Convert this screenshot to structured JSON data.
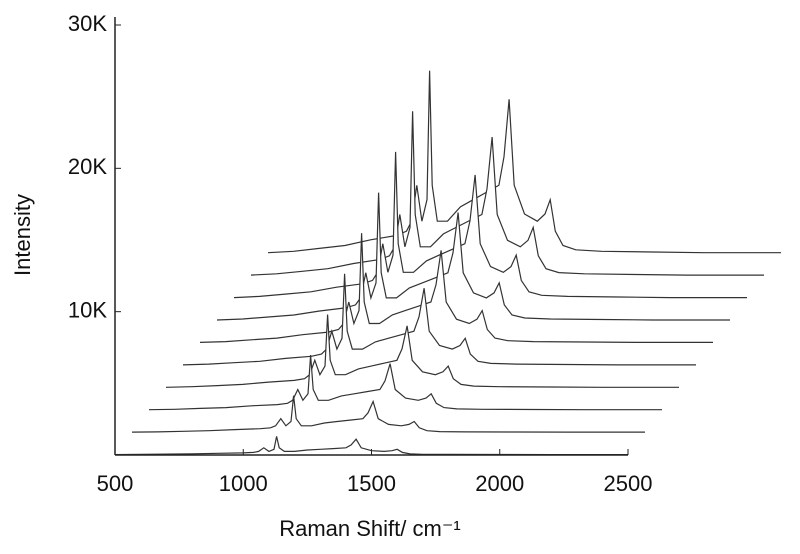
{
  "chart_data": {
    "type": "waterfall",
    "x_label": "Raman Shift/ cm⁻¹",
    "y_label": "Intensity",
    "xlim": [
      500,
      2500
    ],
    "ylim": [
      0,
      30000
    ],
    "xticks": [
      500,
      1000,
      1500,
      2000,
      2500
    ],
    "yticks": [
      {
        "value": 10000,
        "label": "10K"
      },
      {
        "value": 20000,
        "label": "20K"
      },
      {
        "value": 30000,
        "label": "30K"
      }
    ],
    "x": [
      500,
      600,
      700,
      800,
      900,
      1000,
      1040,
      1060,
      1080,
      1100,
      1120,
      1130,
      1140,
      1160,
      1200,
      1250,
      1300,
      1350,
      1400,
      1420,
      1440,
      1460,
      1500,
      1550,
      1580,
      1600,
      1620,
      1650,
      1700,
      1800,
      2000,
      2200,
      2500
    ],
    "series": [
      {
        "color": "#333333",
        "values": [
          30,
          40,
          60,
          80,
          120,
          150,
          180,
          250,
          500,
          250,
          400,
          1300,
          500,
          250,
          250,
          350,
          400,
          450,
          500,
          700,
          1100,
          500,
          300,
          250,
          300,
          400,
          180,
          80,
          50,
          40,
          35,
          30,
          30
        ]
      },
      {
        "color": "#333333",
        "values": [
          60,
          80,
          120,
          160,
          240,
          300,
          360,
          500,
          1000,
          500,
          800,
          2600,
          1000,
          500,
          500,
          700,
          800,
          900,
          1000,
          1400,
          2200,
          1000,
          600,
          500,
          600,
          800,
          360,
          160,
          100,
          80,
          70,
          60,
          60
        ]
      },
      {
        "color": "#333333",
        "values": [
          90,
          120,
          180,
          240,
          360,
          450,
          540,
          750,
          1500,
          750,
          1200,
          3900,
          1500,
          750,
          750,
          1050,
          1200,
          1350,
          1500,
          2100,
          3300,
          1500,
          900,
          750,
          900,
          1200,
          540,
          240,
          150,
          120,
          105,
          90,
          90
        ]
      },
      {
        "color": "#333333",
        "values": [
          120,
          160,
          240,
          320,
          480,
          600,
          720,
          1000,
          2000,
          1000,
          1600,
          5200,
          2000,
          1000,
          1000,
          1400,
          1600,
          1800,
          2000,
          2800,
          4400,
          2000,
          1200,
          1000,
          1200,
          1600,
          720,
          320,
          200,
          160,
          140,
          120,
          120
        ]
      },
      {
        "color": "#333333",
        "values": [
          150,
          200,
          300,
          400,
          600,
          750,
          900,
          1250,
          2500,
          1250,
          2000,
          6500,
          2500,
          1250,
          1250,
          1750,
          2000,
          2250,
          2500,
          3500,
          5500,
          2500,
          1500,
          1250,
          1500,
          2000,
          900,
          400,
          250,
          200,
          175,
          150,
          150
        ]
      },
      {
        "color": "#333333",
        "values": [
          180,
          240,
          360,
          480,
          720,
          900,
          1080,
          1500,
          3000,
          1500,
          2400,
          7800,
          3000,
          1500,
          1500,
          2100,
          2400,
          2700,
          3000,
          4200,
          6600,
          3000,
          1800,
          1500,
          1800,
          2400,
          1080,
          480,
          300,
          240,
          210,
          180,
          180
        ]
      },
      {
        "color": "#333333",
        "values": [
          210,
          280,
          420,
          560,
          840,
          1050,
          1260,
          1750,
          3500,
          1750,
          2800,
          9100,
          3500,
          1750,
          1750,
          2450,
          2800,
          3150,
          3500,
          4900,
          7700,
          3500,
          2100,
          1750,
          2100,
          2800,
          1260,
          560,
          350,
          280,
          245,
          210,
          210
        ]
      },
      {
        "color": "#333333",
        "values": [
          240,
          320,
          480,
          640,
          960,
          1200,
          1440,
          2000,
          4000,
          2000,
          3200,
          10400,
          4000,
          2000,
          2000,
          2800,
          3200,
          3600,
          4000,
          5600,
          8800,
          4000,
          2400,
          2000,
          2400,
          3200,
          1440,
          640,
          400,
          320,
          280,
          240,
          240
        ]
      },
      {
        "color": "#333333",
        "values": [
          270,
          360,
          540,
          720,
          1080,
          1350,
          1620,
          2250,
          4500,
          2250,
          3600,
          11700,
          4500,
          2250,
          2250,
          3150,
          3600,
          4050,
          4500,
          6300,
          9900,
          4500,
          2700,
          2250,
          2700,
          3600,
          1620,
          720,
          450,
          360,
          315,
          270,
          270
        ]
      },
      {
        "color": "#333333",
        "values": [
          300,
          400,
          600,
          800,
          1200,
          1500,
          1800,
          2500,
          5000,
          2500,
          4000,
          13000,
          5000,
          2500,
          2500,
          3500,
          4000,
          4500,
          5000,
          7000,
          11000,
          5000,
          3000,
          2500,
          3000,
          4000,
          1800,
          800,
          500,
          400,
          350,
          300,
          300
        ]
      }
    ]
  }
}
